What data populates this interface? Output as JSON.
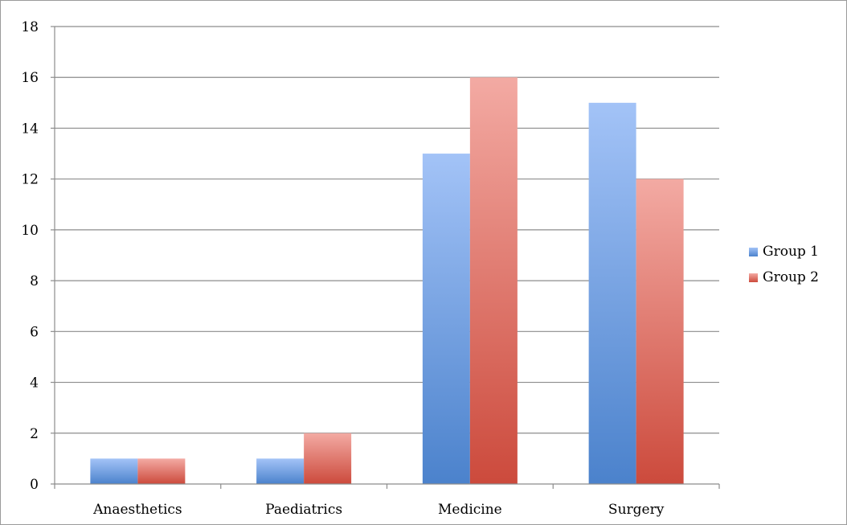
{
  "chart_data": {
    "type": "bar",
    "categories": [
      "Anaesthetics",
      "Paediatrics",
      "Medicine",
      "Surgery"
    ],
    "series": [
      {
        "name": "Group 1",
        "values": [
          1,
          1,
          13,
          15
        ],
        "color": "#7fa6e8"
      },
      {
        "name": "Group 2",
        "values": [
          1,
          2,
          16,
          12
        ],
        "color": "#e5827b"
      }
    ],
    "y_ticks": [
      "0",
      "2",
      "4",
      "6",
      "8",
      "10",
      "12",
      "14",
      "16",
      "18"
    ],
    "ylim": [
      0,
      18
    ],
    "grid": true,
    "legend_position": "right"
  }
}
